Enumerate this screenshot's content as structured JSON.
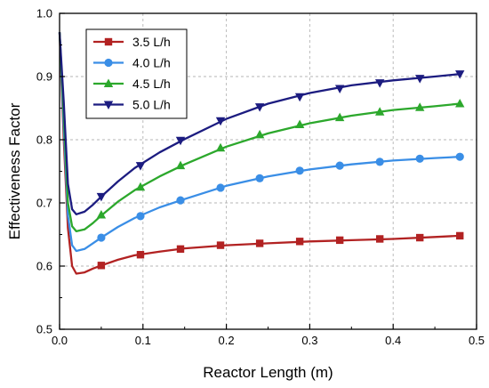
{
  "chart_data": {
    "type": "line",
    "title": "",
    "xlabel": "Reactor Length (m)",
    "ylabel": "Effectiveness Factor",
    "xlim": [
      0.0,
      0.5
    ],
    "ylim": [
      0.5,
      1.0
    ],
    "xticks": [
      0.0,
      0.1,
      0.2,
      0.3,
      0.4,
      0.5
    ],
    "yticks": [
      0.5,
      0.6,
      0.7,
      0.8,
      0.9,
      1.0
    ],
    "xtick_labels": [
      "0.0",
      "0.1",
      "0.2",
      "0.3",
      "0.4",
      "0.5"
    ],
    "ytick_labels": [
      "0.5",
      "0.6",
      "0.7",
      "0.8",
      "0.9",
      "1.0"
    ],
    "grid": true,
    "legend_position": "top-left",
    "series": [
      {
        "name": "3.5 L/h",
        "color": "#b22222",
        "marker": "square",
        "line": {
          "x": [
            0,
            0.005,
            0.01,
            0.015,
            0.02,
            0.03,
            0.04,
            0.05,
            0.07,
            0.09,
            0.12,
            0.15,
            0.2,
            0.25,
            0.3,
            0.35,
            0.4,
            0.45,
            0.48
          ],
          "y": [
            0.97,
            0.8,
            0.66,
            0.6,
            0.588,
            0.59,
            0.596,
            0.601,
            0.61,
            0.617,
            0.623,
            0.628,
            0.633,
            0.636,
            0.639,
            0.641,
            0.643,
            0.646,
            0.648
          ]
        },
        "markers": {
          "x": [
            0.05,
            0.097,
            0.145,
            0.193,
            0.24,
            0.288,
            0.336,
            0.384,
            0.432,
            0.48
          ],
          "y": [
            0.601,
            0.618,
            0.627,
            0.633,
            0.636,
            0.639,
            0.641,
            0.643,
            0.645,
            0.648
          ]
        }
      },
      {
        "name": "4.0 L/h",
        "color": "#3a8ee6",
        "marker": "circle",
        "line": {
          "x": [
            0,
            0.005,
            0.01,
            0.015,
            0.02,
            0.03,
            0.04,
            0.05,
            0.07,
            0.09,
            0.12,
            0.15,
            0.2,
            0.25,
            0.3,
            0.35,
            0.4,
            0.45,
            0.48
          ],
          "y": [
            0.97,
            0.82,
            0.68,
            0.633,
            0.624,
            0.627,
            0.636,
            0.645,
            0.662,
            0.676,
            0.693,
            0.706,
            0.727,
            0.742,
            0.753,
            0.761,
            0.767,
            0.771,
            0.773
          ]
        },
        "markers": {
          "x": [
            0.05,
            0.097,
            0.145,
            0.193,
            0.24,
            0.288,
            0.336,
            0.384,
            0.432,
            0.48
          ],
          "y": [
            0.645,
            0.679,
            0.704,
            0.724,
            0.739,
            0.751,
            0.759,
            0.765,
            0.77,
            0.773
          ]
        }
      },
      {
        "name": "4.5 L/h",
        "color": "#2ca82c",
        "marker": "triangle-up",
        "line": {
          "x": [
            0,
            0.005,
            0.01,
            0.015,
            0.02,
            0.03,
            0.04,
            0.05,
            0.07,
            0.09,
            0.12,
            0.15,
            0.2,
            0.25,
            0.3,
            0.35,
            0.4,
            0.45,
            0.48
          ],
          "y": [
            0.97,
            0.84,
            0.7,
            0.663,
            0.655,
            0.658,
            0.668,
            0.68,
            0.702,
            0.72,
            0.742,
            0.761,
            0.789,
            0.81,
            0.826,
            0.838,
            0.847,
            0.853,
            0.857
          ]
        },
        "markers": {
          "x": [
            0.05,
            0.097,
            0.145,
            0.193,
            0.24,
            0.288,
            0.336,
            0.384,
            0.432,
            0.48
          ],
          "y": [
            0.681,
            0.725,
            0.759,
            0.787,
            0.808,
            0.824,
            0.835,
            0.844,
            0.851,
            0.857
          ]
        }
      },
      {
        "name": "5.0 L/h",
        "color": "#1c1c80",
        "marker": "triangle-down",
        "line": {
          "x": [
            0,
            0.005,
            0.01,
            0.015,
            0.02,
            0.03,
            0.04,
            0.05,
            0.07,
            0.09,
            0.12,
            0.15,
            0.2,
            0.25,
            0.3,
            0.35,
            0.4,
            0.45,
            0.48
          ],
          "y": [
            0.97,
            0.86,
            0.73,
            0.69,
            0.682,
            0.686,
            0.697,
            0.71,
            0.734,
            0.755,
            0.78,
            0.801,
            0.833,
            0.857,
            0.874,
            0.886,
            0.894,
            0.9,
            0.904
          ]
        },
        "markers": {
          "x": [
            0.05,
            0.097,
            0.145,
            0.193,
            0.24,
            0.288,
            0.336,
            0.384,
            0.432,
            0.48
          ],
          "y": [
            0.71,
            0.759,
            0.799,
            0.83,
            0.852,
            0.868,
            0.881,
            0.89,
            0.897,
            0.904
          ]
        }
      }
    ]
  }
}
